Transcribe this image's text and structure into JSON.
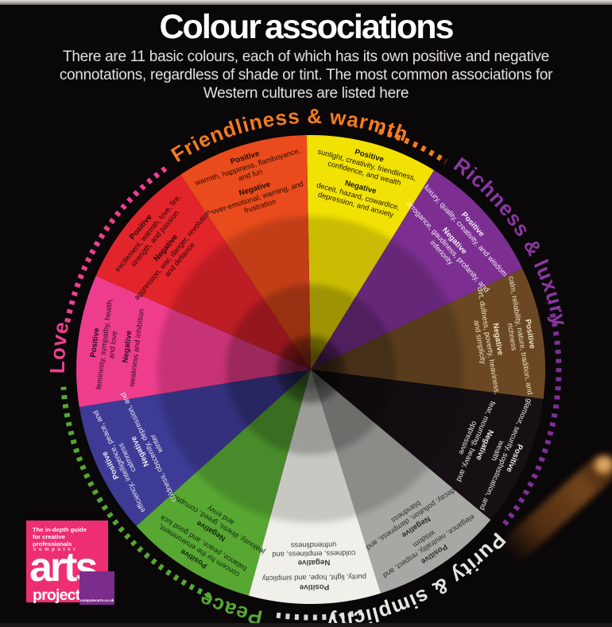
{
  "header": {
    "title": "Colour associations",
    "subtitle_lines": [
      "There are 11 basic colours, each of which has its own positive and negative",
      "connotations, regardless of shade or tint. The most common associations for",
      "Western cultures are listed here"
    ]
  },
  "wheel": {
    "positive_label": "Positive",
    "negative_label": "Negative",
    "segments": [
      {
        "name": "yellow",
        "color": "#f2e203",
        "text_color": "#211a02",
        "positive": "sunlight, creativity, friendliness, confidence, and wealth",
        "negative": "deceit, hazard, cowardice, depression, and anxiety"
      },
      {
        "name": "purple",
        "color": "#7c2f91",
        "text_color": "#f6eefa",
        "positive": "luxury, quality, creativity, and wisdom",
        "negative": "arrogance, gaudiness, profanity, and inferiority"
      },
      {
        "name": "brown",
        "color": "#6b4823",
        "text_color": "#efe3c0",
        "positive": "calm, reliability, nature, tradition, and richness",
        "negative": "dirt, dullness, poverty, heaviness, and simplicity"
      },
      {
        "name": "black",
        "color": "#161014",
        "text_color": "#e9e7e8",
        "positive": "glamour, security, sophistication, and wealth",
        "negative": "fear, mourning, heavy, and oppressive"
      },
      {
        "name": "grey",
        "color": "#a7a7a3",
        "text_color": "#2d2d2b",
        "positive": "elegance, neutrality, respect, and wisdom",
        "negative": "decay, pollution, dampness, and blandness"
      },
      {
        "name": "white",
        "color": "#f0efe9",
        "text_color": "#3c3c3a",
        "positive": "purity, light, hope, and simplicity",
        "negative": "coldness, emptiness, and unfriendliness"
      },
      {
        "name": "green",
        "color": "#58a733",
        "text_color": "#10270a",
        "positive": "concern for the environment, balance, peace, and good luck",
        "negative": "jealousy, illness, greed, corruption, and envy"
      },
      {
        "name": "blue",
        "color": "#3d3b96",
        "text_color": "#eceaf6",
        "positive": "efficiency, intelligence, peace, and calmness",
        "negative": "coldness, obscenity, depression, and winter"
      },
      {
        "name": "pink",
        "color": "#ef3d8d",
        "text_color": "#2b0d1c",
        "positive": "femininity, sympathy, health, and love",
        "negative": "weakness and inhibition"
      },
      {
        "name": "red",
        "color": "#e2242b",
        "text_color": "#240607",
        "positive": "excitement, warmth, love, fire, strength, and passion",
        "negative": "aggression, war, danger, revolution, and defiance"
      },
      {
        "name": "orange",
        "color": "#ea4b1c",
        "text_color": "#260d03",
        "positive": "warmth, happiness, flamboyance, and fun",
        "negative": "over-emotional, warning, and frustration"
      }
    ],
    "arc_labels": [
      {
        "text": "Friendliness & warmth",
        "color": "#f47b20",
        "start_angle": 327,
        "path": "B"
      },
      {
        "text": "Richness & luxury",
        "color": "#8a37a3",
        "start_angle": 35,
        "path": "A"
      },
      {
        "text": "Purity & simplicity",
        "color": "#e6e6e2",
        "start_angle": 131,
        "path": "A"
      },
      {
        "text": "Peace",
        "color": "#56a832",
        "start_angle": 191,
        "path": "A"
      },
      {
        "text": "Love",
        "color": "#ee3f8e",
        "start_angle": 269,
        "path": "B"
      }
    ],
    "dot_arcs": [
      {
        "name": "pink-dots",
        "color": "#ee3f8e",
        "from": 281,
        "to": 325
      },
      {
        "name": "orange-dots",
        "color": "#f47b20",
        "from": 16,
        "to": 33
      },
      {
        "name": "purple-dots",
        "color": "#7c3097",
        "from": 77,
        "to": 129
      },
      {
        "name": "white-dots",
        "color": "#d9d8d4",
        "from": 168,
        "to": 188
      },
      {
        "name": "green-dots",
        "color": "#56a832",
        "from": 204,
        "to": 266
      }
    ]
  },
  "logo": {
    "tagline": "The in-depth guide for creative professionals",
    "brand_top": "computer",
    "brand_main": "arts",
    "brand_sub": "projects",
    "url": "computerarts.co.uk",
    "pink": "#ee2e73",
    "purple": "#7b2d8b"
  }
}
